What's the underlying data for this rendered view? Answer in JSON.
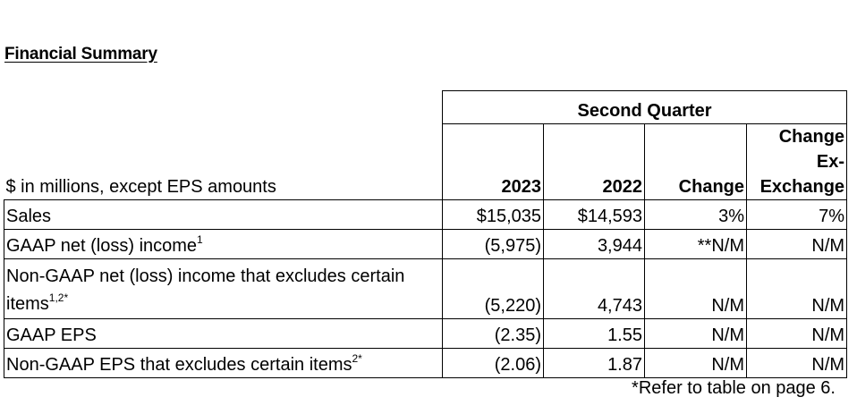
{
  "title": "Financial Summary",
  "table": {
    "group_header": "Second Quarter",
    "row_header": "$ in millions, except EPS amounts",
    "columns": [
      "2023",
      "2022",
      "Change",
      "Change Ex-Exchange"
    ],
    "rows": [
      {
        "label": "Sales",
        "sup": "",
        "values": [
          "$15,035",
          "$14,593",
          "3%",
          "7%"
        ]
      },
      {
        "label": "GAAP net (loss) income",
        "sup": "1",
        "values": [
          "(5,975)",
          "3,944",
          "**N/M",
          "N/M"
        ]
      },
      {
        "label": "Non-GAAP net (loss) income that excludes certain items",
        "sup": "1,2*",
        "values": [
          "(5,220)",
          "4,743",
          "N/M",
          "N/M"
        ]
      },
      {
        "label": "GAAP EPS",
        "sup": "",
        "values": [
          "(2.35)",
          "1.55",
          "N/M",
          "N/M"
        ]
      },
      {
        "label": "Non-GAAP EPS that excludes certain items",
        "sup": "2*",
        "values": [
          "(2.06)",
          "1.87",
          "N/M",
          "N/M"
        ]
      }
    ]
  },
  "footnote": "*Refer to table on page 6."
}
